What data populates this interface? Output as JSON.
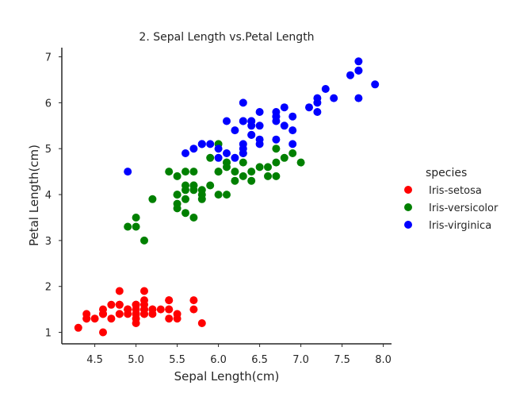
{
  "chart_data": {
    "type": "scatter",
    "title": "2. Sepal Length vs.Petal Length",
    "xlabel": "Sepal Length(cm)",
    "ylabel": "Petal Length(cm)",
    "xlim": [
      4.1,
      8.1
    ],
    "ylim": [
      0.75,
      7.2
    ],
    "xticks": [
      "4.5",
      "5.0",
      "5.5",
      "6.0",
      "6.5",
      "7.0",
      "7.5",
      "8.0"
    ],
    "yticks": [
      "1",
      "2",
      "3",
      "4",
      "5",
      "6",
      "7"
    ],
    "grid": false,
    "legend": {
      "title": "species",
      "placement": "right"
    },
    "series": [
      {
        "name": "Iris-setosa",
        "color": "#ff0000",
        "points": [
          [
            5.1,
            1.4
          ],
          [
            4.9,
            1.4
          ],
          [
            4.7,
            1.3
          ],
          [
            4.6,
            1.5
          ],
          [
            5.0,
            1.4
          ],
          [
            5.4,
            1.7
          ],
          [
            4.6,
            1.4
          ],
          [
            5.0,
            1.5
          ],
          [
            4.4,
            1.4
          ],
          [
            4.9,
            1.5
          ],
          [
            5.4,
            1.5
          ],
          [
            4.8,
            1.6
          ],
          [
            4.8,
            1.4
          ],
          [
            4.3,
            1.1
          ],
          [
            5.8,
            1.2
          ],
          [
            5.7,
            1.5
          ],
          [
            5.4,
            1.3
          ],
          [
            5.1,
            1.4
          ],
          [
            5.7,
            1.7
          ],
          [
            5.1,
            1.5
          ],
          [
            5.4,
            1.7
          ],
          [
            5.1,
            1.5
          ],
          [
            4.6,
            1.0
          ],
          [
            5.1,
            1.7
          ],
          [
            4.8,
            1.9
          ],
          [
            5.0,
            1.6
          ],
          [
            5.0,
            1.6
          ],
          [
            5.2,
            1.5
          ],
          [
            5.2,
            1.4
          ],
          [
            4.7,
            1.6
          ],
          [
            4.8,
            1.6
          ],
          [
            5.4,
            1.5
          ],
          [
            5.2,
            1.5
          ],
          [
            5.5,
            1.4
          ],
          [
            4.9,
            1.5
          ],
          [
            5.0,
            1.2
          ],
          [
            5.5,
            1.3
          ],
          [
            4.9,
            1.5
          ],
          [
            4.4,
            1.3
          ],
          [
            5.1,
            1.5
          ],
          [
            5.0,
            1.3
          ],
          [
            4.5,
            1.3
          ],
          [
            4.4,
            1.3
          ],
          [
            5.0,
            1.6
          ],
          [
            5.1,
            1.9
          ],
          [
            4.8,
            1.4
          ],
          [
            5.1,
            1.6
          ],
          [
            4.6,
            1.4
          ],
          [
            5.3,
            1.5
          ],
          [
            5.0,
            1.4
          ]
        ]
      },
      {
        "name": "Iris-versicolor",
        "color": "#008000",
        "points": [
          [
            7.0,
            4.7
          ],
          [
            6.4,
            4.5
          ],
          [
            6.9,
            4.9
          ],
          [
            5.5,
            4.0
          ],
          [
            6.5,
            4.6
          ],
          [
            5.7,
            4.5
          ],
          [
            6.3,
            4.7
          ],
          [
            4.9,
            3.3
          ],
          [
            6.6,
            4.6
          ],
          [
            5.2,
            3.9
          ],
          [
            5.0,
            3.5
          ],
          [
            5.9,
            4.2
          ],
          [
            6.0,
            4.0
          ],
          [
            6.1,
            4.7
          ],
          [
            5.6,
            3.6
          ],
          [
            6.7,
            4.4
          ],
          [
            5.6,
            4.5
          ],
          [
            5.8,
            4.1
          ],
          [
            6.2,
            4.5
          ],
          [
            5.6,
            3.9
          ],
          [
            5.9,
            4.8
          ],
          [
            6.1,
            4.0
          ],
          [
            6.3,
            4.9
          ],
          [
            6.1,
            4.7
          ],
          [
            6.4,
            4.3
          ],
          [
            6.6,
            4.4
          ],
          [
            6.8,
            4.8
          ],
          [
            6.7,
            5.0
          ],
          [
            6.0,
            4.5
          ],
          [
            5.7,
            3.5
          ],
          [
            5.5,
            3.8
          ],
          [
            5.5,
            3.7
          ],
          [
            5.8,
            3.9
          ],
          [
            6.0,
            5.1
          ],
          [
            5.4,
            4.5
          ],
          [
            6.0,
            4.5
          ],
          [
            6.7,
            4.7
          ],
          [
            6.3,
            4.4
          ],
          [
            5.6,
            4.1
          ],
          [
            5.5,
            4.0
          ],
          [
            5.5,
            4.4
          ],
          [
            6.1,
            4.6
          ],
          [
            5.8,
            4.0
          ],
          [
            5.0,
            3.3
          ],
          [
            5.6,
            4.2
          ],
          [
            5.7,
            4.2
          ],
          [
            5.7,
            4.2
          ],
          [
            6.2,
            4.3
          ],
          [
            5.1,
            3.0
          ],
          [
            5.7,
            4.1
          ]
        ]
      },
      {
        "name": "Iris-virginica",
        "color": "#0000ff",
        "points": [
          [
            6.3,
            6.0
          ],
          [
            5.8,
            5.1
          ],
          [
            7.1,
            5.9
          ],
          [
            6.3,
            5.6
          ],
          [
            6.5,
            5.8
          ],
          [
            7.6,
            6.6
          ],
          [
            4.9,
            4.5
          ],
          [
            7.3,
            6.3
          ],
          [
            6.7,
            5.8
          ],
          [
            7.2,
            6.1
          ],
          [
            6.5,
            5.1
          ],
          [
            6.4,
            5.3
          ],
          [
            6.8,
            5.5
          ],
          [
            5.7,
            5.0
          ],
          [
            5.8,
            5.1
          ],
          [
            6.4,
            5.3
          ],
          [
            6.5,
            5.5
          ],
          [
            7.7,
            6.7
          ],
          [
            7.7,
            6.9
          ],
          [
            6.0,
            5.0
          ],
          [
            6.9,
            5.7
          ],
          [
            5.6,
            4.9
          ],
          [
            7.7,
            6.7
          ],
          [
            6.3,
            4.9
          ],
          [
            6.7,
            5.7
          ],
          [
            7.2,
            6.0
          ],
          [
            6.2,
            4.8
          ],
          [
            6.1,
            4.9
          ],
          [
            6.4,
            5.6
          ],
          [
            7.2,
            5.8
          ],
          [
            7.4,
            6.1
          ],
          [
            7.9,
            6.4
          ],
          [
            6.4,
            5.6
          ],
          [
            6.3,
            5.1
          ],
          [
            6.1,
            5.6
          ],
          [
            7.7,
            6.1
          ],
          [
            6.3,
            5.6
          ],
          [
            6.4,
            5.5
          ],
          [
            6.0,
            4.8
          ],
          [
            6.9,
            5.4
          ],
          [
            6.7,
            5.6
          ],
          [
            6.9,
            5.1
          ],
          [
            5.8,
            5.1
          ],
          [
            6.8,
            5.9
          ],
          [
            6.7,
            5.7
          ],
          [
            6.7,
            5.2
          ],
          [
            6.3,
            5.0
          ],
          [
            6.5,
            5.2
          ],
          [
            6.2,
            5.4
          ],
          [
            5.9,
            5.1
          ]
        ]
      }
    ]
  }
}
